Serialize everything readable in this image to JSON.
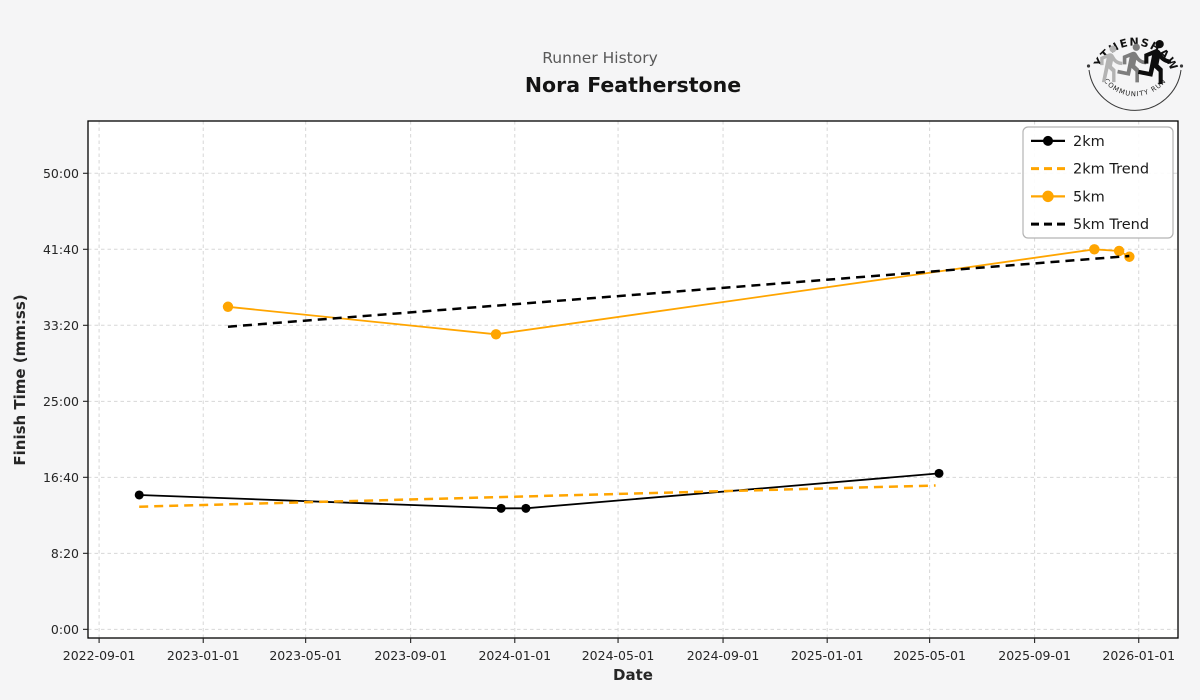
{
  "header": {
    "subtitle": "Runner History",
    "title": "Nora Featherstone"
  },
  "logo": {
    "top_text": "WYTHENSHAWE",
    "bottom_text": "COMMUNITY RUN",
    "runner_colors": [
      "#b3b3b3",
      "#7d7d7d",
      "#0d0d0d"
    ]
  },
  "colors": {
    "accent_orange": "#FFA500",
    "series_black": "#000000",
    "figure_background": "#f5f5f6",
    "plot_background": "#ffffff",
    "grid": "#d7d7d7",
    "subtitle_gray": "#595959",
    "text": "#262626"
  },
  "chart_data": {
    "type": "line",
    "title": "Nora Featherstone",
    "subtitle": "Runner History",
    "xlabel": "Date",
    "ylabel": "Finish Time (mm:ss)",
    "grid": true,
    "legend_position": "upper-right",
    "x_axis": {
      "kind": "date",
      "min": "2022-08-19",
      "max": "2026-02-16",
      "tick_dates": [
        "2022-09-01",
        "2023-01-01",
        "2023-05-01",
        "2023-09-01",
        "2024-01-01",
        "2024-05-01",
        "2024-09-01",
        "2025-01-01",
        "2025-05-01",
        "2025-09-01",
        "2026-01-01"
      ]
    },
    "y_axis": {
      "kind": "duration-seconds",
      "min": -57,
      "max": 3344,
      "ticks": [
        {
          "seconds": 0,
          "label": "0:00"
        },
        {
          "seconds": 500,
          "label": "8:20"
        },
        {
          "seconds": 1000,
          "label": "16:40"
        },
        {
          "seconds": 1500,
          "label": "25:00"
        },
        {
          "seconds": 2000,
          "label": "33:20"
        },
        {
          "seconds": 2500,
          "label": "41:40"
        },
        {
          "seconds": 3000,
          "label": "50:00"
        }
      ]
    },
    "series": [
      {
        "name": "2km",
        "color": "#000000",
        "line_style": "solid",
        "line_width": 1.8,
        "marker": "circle",
        "marker_size": 4.5,
        "points": [
          {
            "date": "2022-10-18",
            "seconds": 884,
            "time": "14:44"
          },
          {
            "date": "2023-12-16",
            "seconds": 796,
            "time": "13:16"
          },
          {
            "date": "2024-01-14",
            "seconds": 796,
            "time": "13:16"
          },
          {
            "date": "2025-05-12",
            "seconds": 1026,
            "time": "17:06"
          }
        ]
      },
      {
        "name": "2km Trend",
        "color": "#FFA500",
        "line_style": "dashed",
        "line_width": 2.5,
        "marker": "none",
        "marker_size": 0,
        "points": [
          {
            "date": "2022-10-18",
            "seconds": 807,
            "time": "13:27"
          },
          {
            "date": "2025-05-08",
            "seconds": 946,
            "time": "15:46"
          }
        ]
      },
      {
        "name": "5km",
        "color": "#FFA500",
        "line_style": "solid",
        "line_width": 1.8,
        "marker": "circle",
        "marker_size": 5.2,
        "points": [
          {
            "date": "2023-01-30",
            "seconds": 2122,
            "time": "35:22"
          },
          {
            "date": "2023-12-10",
            "seconds": 1941,
            "time": "32:21"
          },
          {
            "date": "2025-11-10",
            "seconds": 2500,
            "time": "41:40"
          },
          {
            "date": "2025-12-09",
            "seconds": 2489,
            "time": "41:29"
          },
          {
            "date": "2025-12-21",
            "seconds": 2451,
            "time": "40:51"
          }
        ]
      },
      {
        "name": "5km Trend",
        "color": "#000000",
        "line_style": "dashed",
        "line_width": 2.5,
        "marker": "none",
        "marker_size": 0,
        "points": [
          {
            "date": "2023-01-30",
            "seconds": 1991,
            "time": "33:11"
          },
          {
            "date": "2025-12-21",
            "seconds": 2456,
            "time": "40:56"
          }
        ]
      }
    ]
  }
}
